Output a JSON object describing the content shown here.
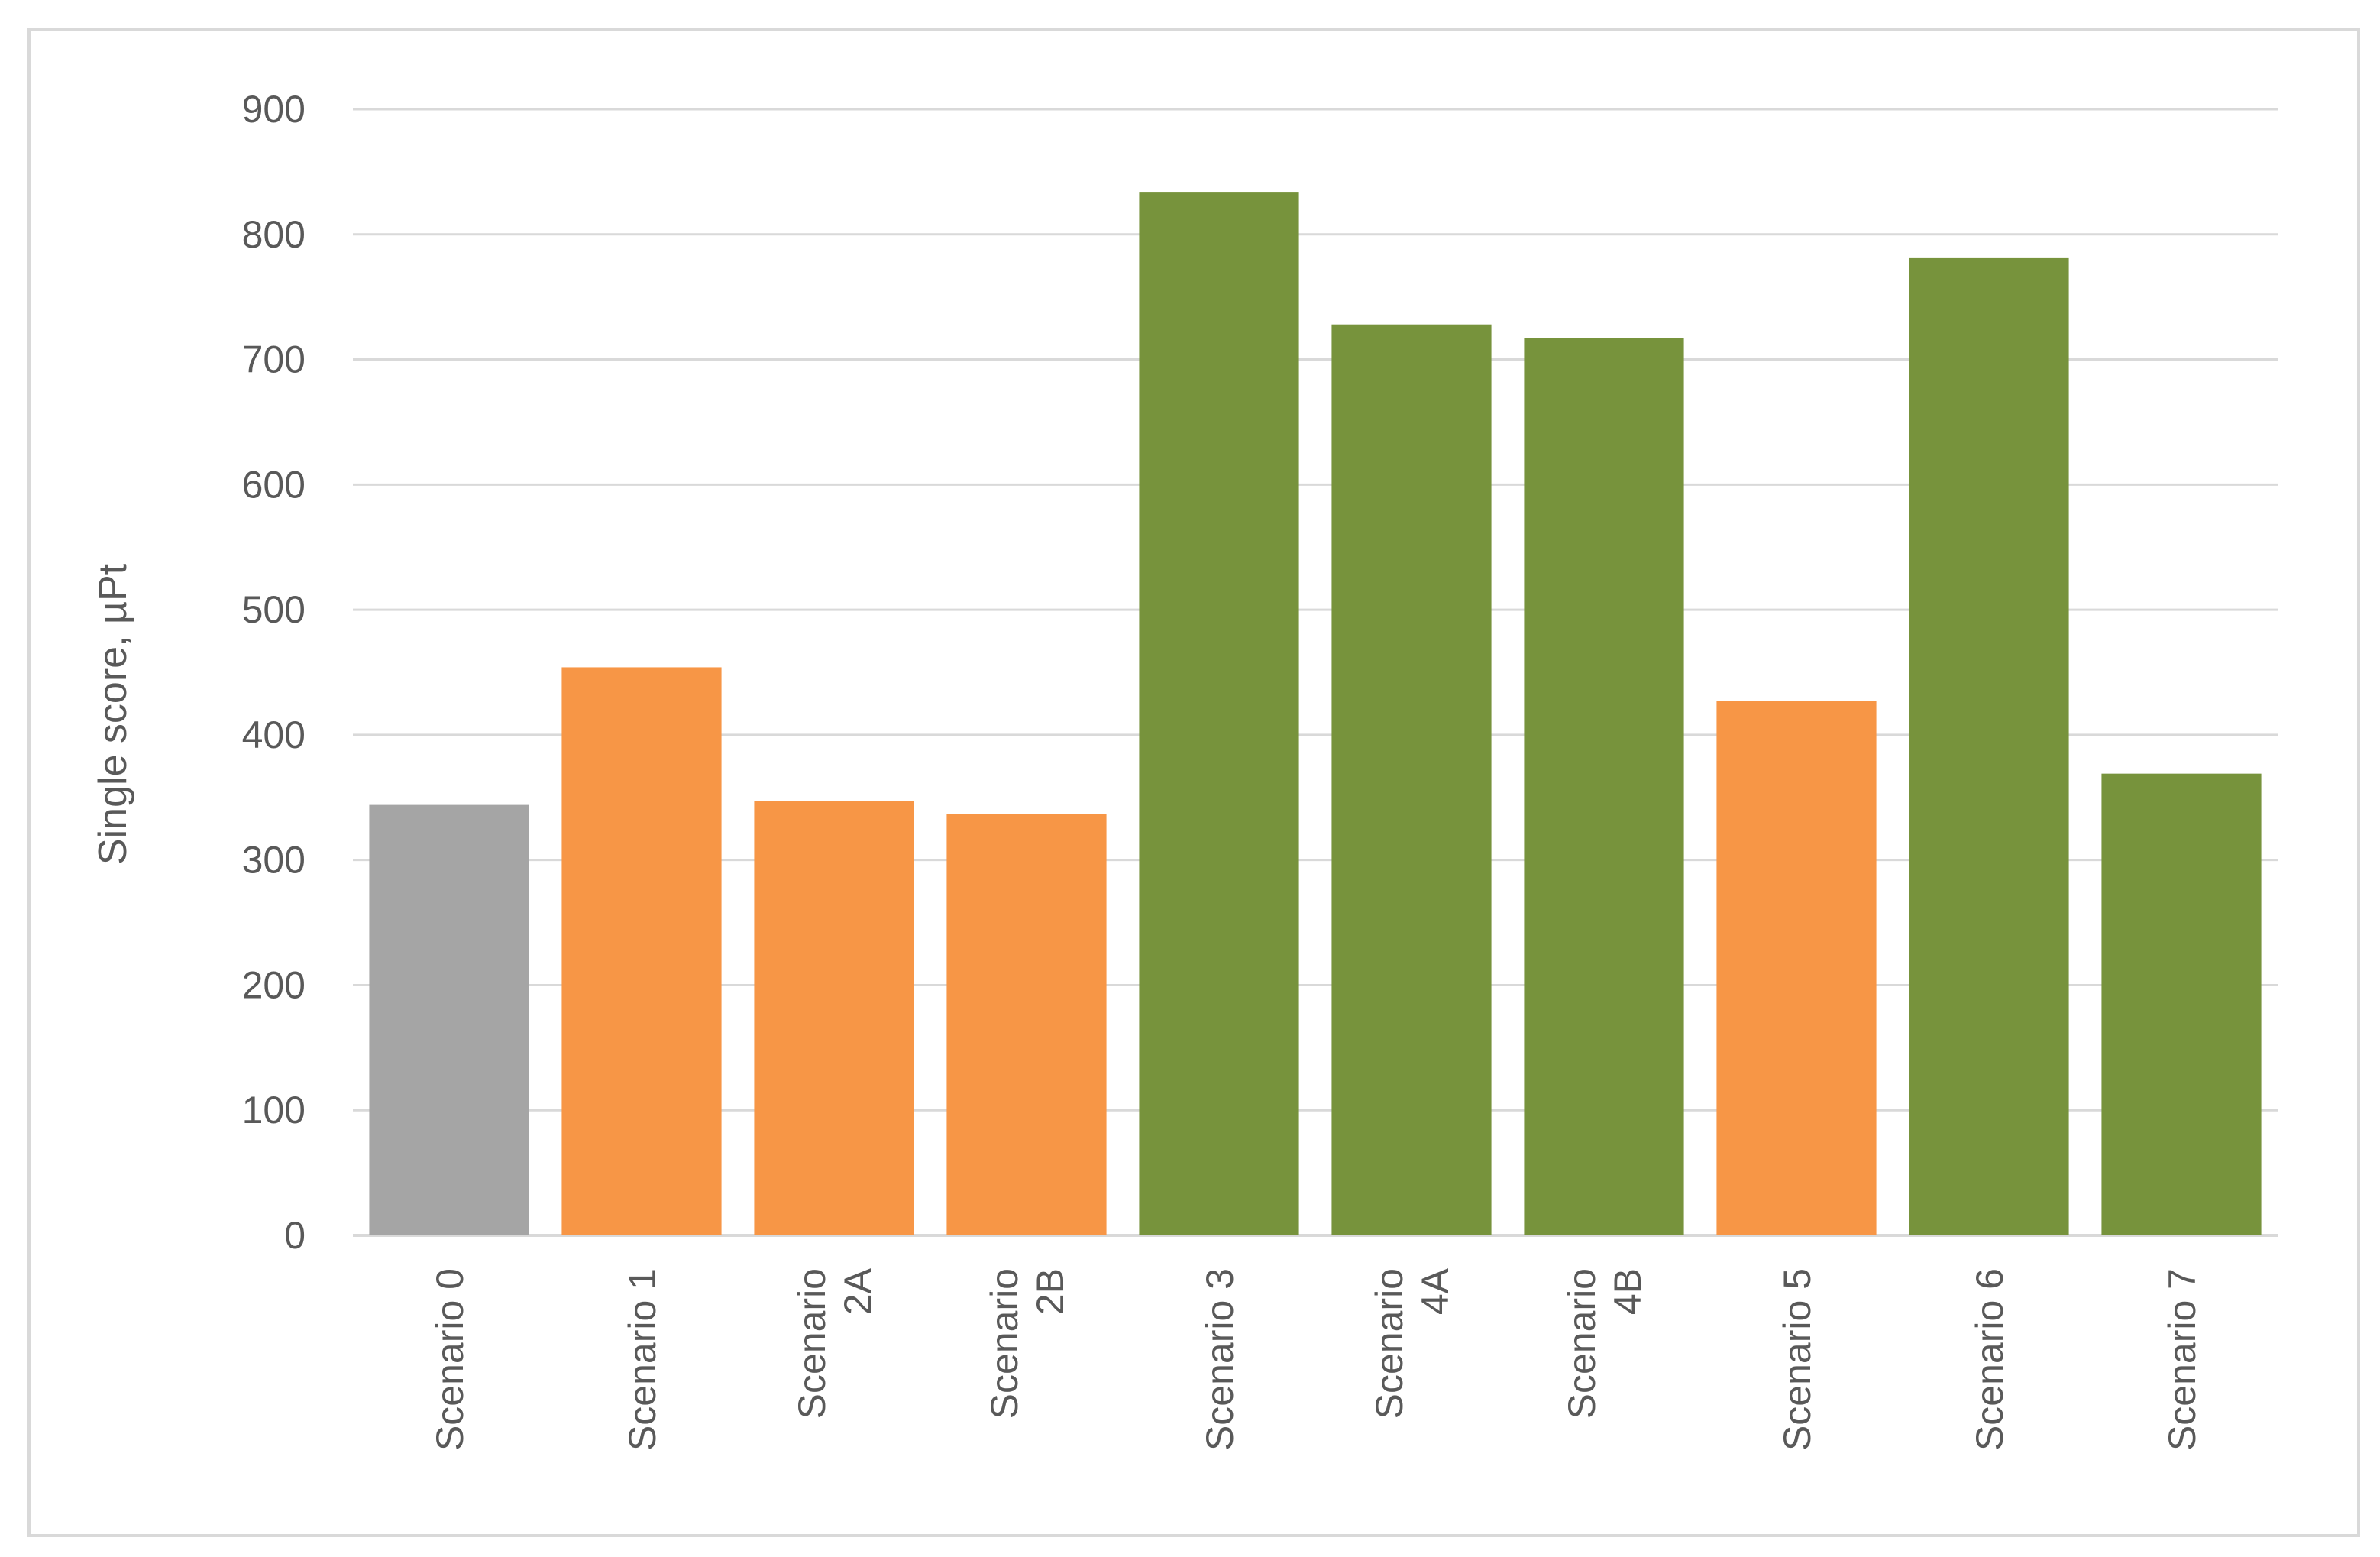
{
  "chart_data": {
    "type": "bar",
    "title": "",
    "xlabel": "",
    "ylabel": "Single score, µPt",
    "ylim": [
      0,
      900
    ],
    "yticks": [
      0,
      100,
      200,
      300,
      400,
      500,
      600,
      700,
      800,
      900
    ],
    "grid": true,
    "legend": "none",
    "categories": [
      [
        "Scenario 0"
      ],
      [
        "Scenario 1"
      ],
      [
        "Scenario",
        "2A"
      ],
      [
        "Scenario",
        "2B"
      ],
      [
        "Scenario 3"
      ],
      [
        "Scenario",
        "4A"
      ],
      [
        "Scenario",
        "4B"
      ],
      [
        "Scenario 5"
      ],
      [
        "Scenario 6"
      ],
      [
        "Scenario 7"
      ]
    ],
    "values": [
      344,
      454,
      347,
      337,
      834,
      728,
      717,
      427,
      781,
      369
    ],
    "bar_colors": [
      "#a5a5a5",
      "#f79646",
      "#f79646",
      "#f79646",
      "#77933c",
      "#77933c",
      "#77933c",
      "#f79646",
      "#77933c",
      "#77933c"
    ],
    "colors": {
      "grid": "#d9d9d9",
      "axis_text": "#595959",
      "frame": "#d9d9d9"
    }
  }
}
